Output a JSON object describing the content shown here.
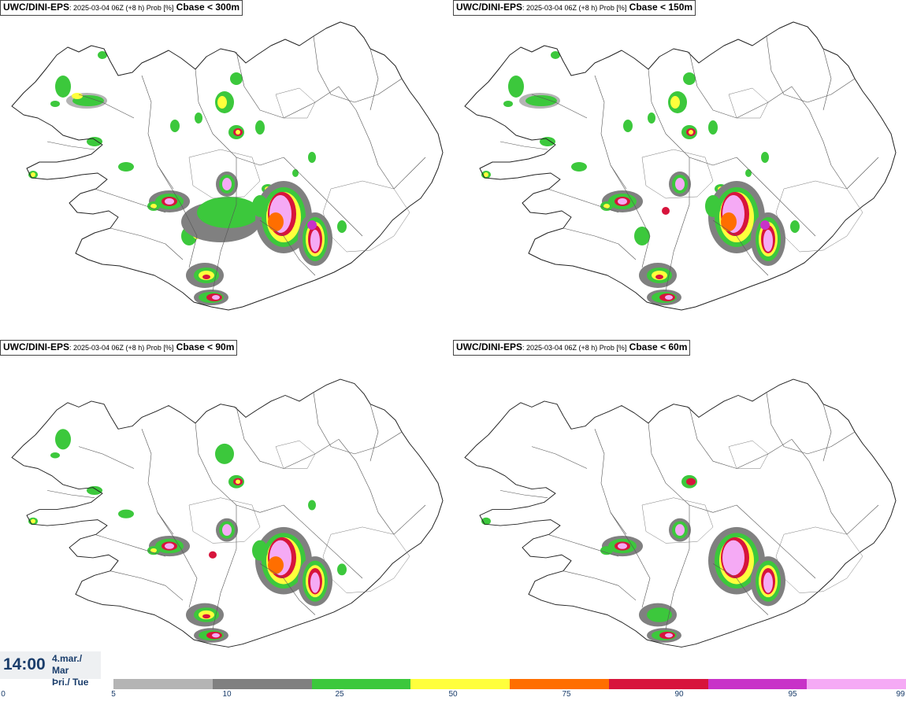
{
  "panels": [
    {
      "model": "UWC/DINI-EPS",
      "meta": ": 2025-03-04 06Z (+8 h) Prob [%]",
      "threshold": "Cbase < 300m",
      "level": 4
    },
    {
      "model": "UWC/DINI-EPS",
      "meta": ": 2025-03-04 06Z (+8 h) Prob [%]",
      "threshold": "Cbase < 150m",
      "level": 3
    },
    {
      "model": "UWC/DINI-EPS",
      "meta": ": 2025-03-04 06Z (+8 h) Prob [%]",
      "threshold": "Cbase < 90m",
      "level": 2
    },
    {
      "model": "UWC/DINI-EPS",
      "meta": ": 2025-03-04 06Z (+8 h) Prob [%]",
      "threshold": "Cbase < 60m",
      "level": 1
    }
  ],
  "time": {
    "clock": "14:00",
    "date_line1": "4.mar./ Mar",
    "date_line2": "Þri./ Tue"
  },
  "legend": {
    "labels": [
      "0",
      "5",
      "10",
      "25",
      "50",
      "75",
      "90",
      "95",
      "99"
    ],
    "colors": [
      "#b4b4b4",
      "#808080",
      "#3cc83c",
      "#ffff3c",
      "#ff6e00",
      "#d7143c",
      "#c832c8",
      "#f5aaf5"
    ]
  },
  "colors": {
    "coast": "#222222",
    "gray_light": "#b4b4b4",
    "gray_dark": "#808080",
    "green": "#3cc83c",
    "yellow": "#ffff3c",
    "orange": "#ff6e00",
    "red": "#d7143c",
    "magenta": "#c832c8",
    "pink": "#f5aaf5"
  }
}
